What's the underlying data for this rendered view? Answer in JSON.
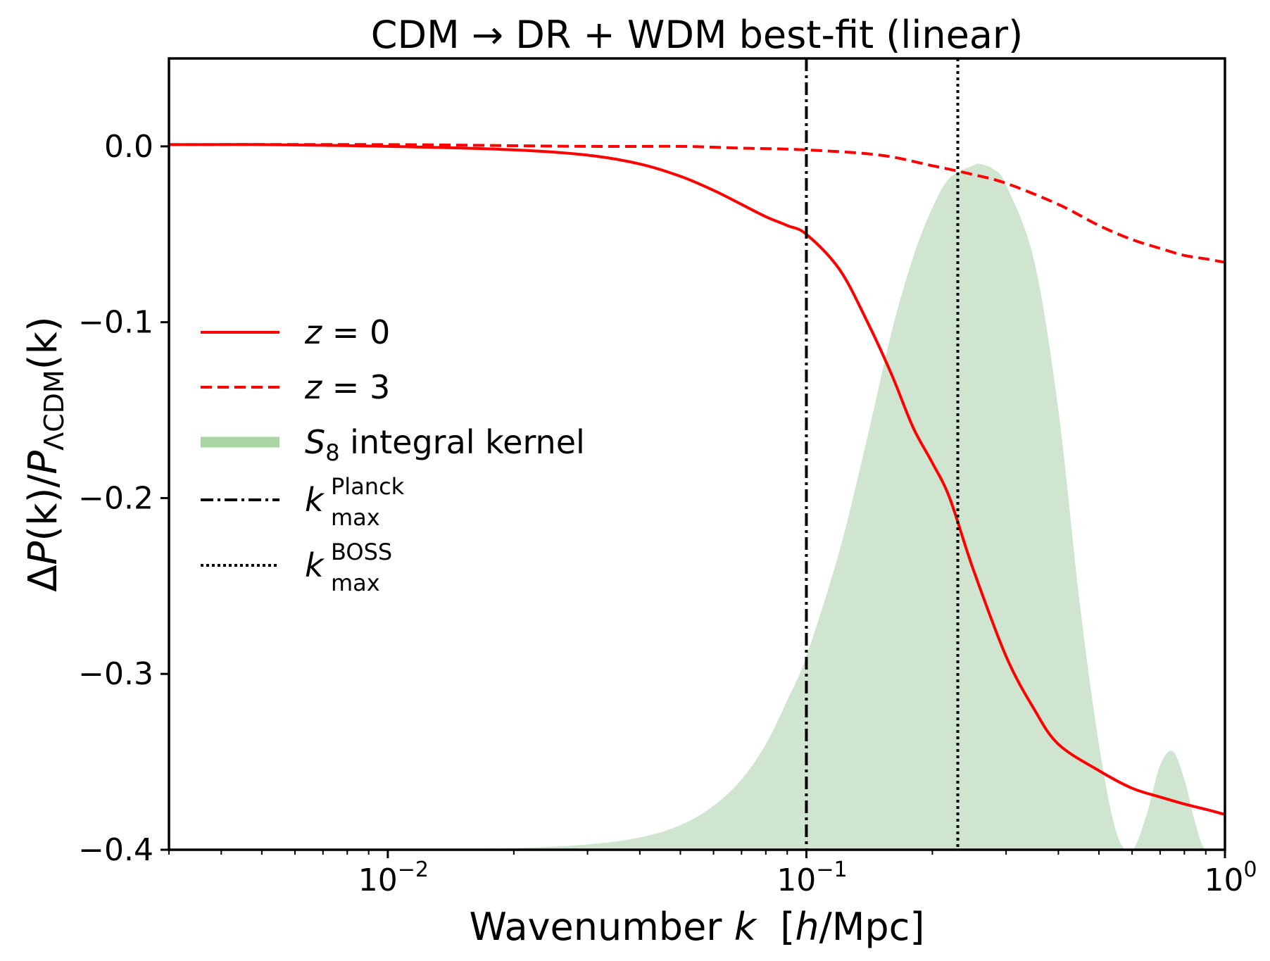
{
  "colors": {
    "z0": "#ff0000",
    "z3": "#ff0000",
    "kernel_fill": "#cfe5cf",
    "kernel_legend": "#a8d5a2",
    "planck": "#000000",
    "boss": "#000000",
    "axes": "#000000"
  },
  "chart_data": {
    "type": "line",
    "title": "CDM → DR + WDM best-fit (linear)",
    "xlabel": "Wavenumber k  [h/Mpc]",
    "ylabel": "ΔP(k)/P_ΛCDM(k)",
    "xscale": "log",
    "xlim": [
      0.003,
      1.0
    ],
    "ylim": [
      -0.4,
      0.05
    ],
    "grid": false,
    "legend_position": "center-left",
    "xticks": [
      {
        "value": 0.01,
        "base": "10",
        "exp": "−2"
      },
      {
        "value": 0.1,
        "base": "10",
        "exp": "−1"
      },
      {
        "value": 1.0,
        "base": "10",
        "exp": "0"
      }
    ],
    "yticks": [
      {
        "value": 0.0,
        "label": "0.0"
      },
      {
        "value": -0.1,
        "label": "−0.1"
      },
      {
        "value": -0.2,
        "label": "−0.2"
      },
      {
        "value": -0.3,
        "label": "−0.3"
      },
      {
        "value": -0.4,
        "label": "−0.4"
      }
    ],
    "series": [
      {
        "name": "z = 0",
        "style": "solid",
        "x": [
          0.003,
          0.005,
          0.01,
          0.02,
          0.03,
          0.04,
          0.05,
          0.06,
          0.07,
          0.08,
          0.09,
          0.1,
          0.12,
          0.14,
          0.16,
          0.18,
          0.2,
          0.22,
          0.25,
          0.3,
          0.35,
          0.4,
          0.5,
          0.6,
          0.7,
          0.8,
          0.9,
          1.0
        ],
        "y": [
          0.001,
          0.001,
          0.0,
          -0.002,
          -0.005,
          -0.01,
          -0.017,
          -0.025,
          -0.033,
          -0.04,
          -0.045,
          -0.05,
          -0.07,
          -0.1,
          -0.13,
          -0.16,
          -0.18,
          -0.2,
          -0.24,
          -0.29,
          -0.32,
          -0.34,
          -0.355,
          -0.365,
          -0.37,
          -0.374,
          -0.377,
          -0.38
        ]
      },
      {
        "name": "z = 3",
        "style": "dashed",
        "x": [
          0.003,
          0.01,
          0.03,
          0.05,
          0.07,
          0.1,
          0.15,
          0.2,
          0.25,
          0.3,
          0.4,
          0.5,
          0.6,
          0.7,
          0.8,
          0.9,
          1.0
        ],
        "y": [
          0.001,
          0.001,
          0.0,
          0.0,
          -0.001,
          -0.002,
          -0.005,
          -0.011,
          -0.016,
          -0.021,
          -0.033,
          -0.045,
          -0.053,
          -0.058,
          -0.062,
          -0.064,
          -0.066
        ]
      },
      {
        "name": "S_8 integral kernel",
        "style": "fill",
        "x": [
          0.003,
          0.01,
          0.02,
          0.03,
          0.04,
          0.05,
          0.06,
          0.07,
          0.08,
          0.09,
          0.1,
          0.12,
          0.14,
          0.16,
          0.18,
          0.2,
          0.22,
          0.25,
          0.26,
          0.28,
          0.3,
          0.35,
          0.4,
          0.45,
          0.5,
          0.55,
          0.6,
          0.65,
          0.7,
          0.75,
          0.8,
          0.85,
          0.9,
          1.0
        ],
        "y": [
          -0.4,
          -0.4,
          -0.399,
          -0.397,
          -0.393,
          -0.386,
          -0.375,
          -0.36,
          -0.34,
          -0.315,
          -0.29,
          -0.23,
          -0.165,
          -0.105,
          -0.063,
          -0.035,
          -0.018,
          -0.011,
          -0.01,
          -0.013,
          -0.022,
          -0.065,
          -0.15,
          -0.26,
          -0.34,
          -0.39,
          -0.4,
          -0.38,
          -0.352,
          -0.344,
          -0.36,
          -0.385,
          -0.4,
          -0.4
        ]
      }
    ],
    "vlines": [
      {
        "name": "k_max^Planck",
        "x": 0.1,
        "style": "dashdot"
      },
      {
        "name": "k_max^BOSS",
        "x": 0.23,
        "style": "dotted"
      }
    ]
  },
  "legend": {
    "z0": {
      "var": "z",
      "rest": " = 0"
    },
    "z3": {
      "var": "z",
      "rest": " = 3"
    },
    "kernel": {
      "var": "S",
      "sub": "8",
      "rest": " integral kernel"
    },
    "planck": {
      "var": "k",
      "sup": "Planck",
      "sub": "max"
    },
    "boss": {
      "var": "k",
      "sup": "BOSS",
      "sub": "max"
    }
  },
  "labels": {
    "title": "CDM → DR + WDM best-fit (linear)",
    "x_axis": {
      "pre": "Wavenumber ",
      "var": "k",
      "mid": "  [",
      "var2": "h",
      "post": "/Mpc]"
    },
    "y_axis": {
      "delta": "Δ",
      "p1": "P",
      "k1": "(k)/",
      "p2": "P",
      "sub": "ΛCDM",
      "k2": "(k)"
    }
  }
}
